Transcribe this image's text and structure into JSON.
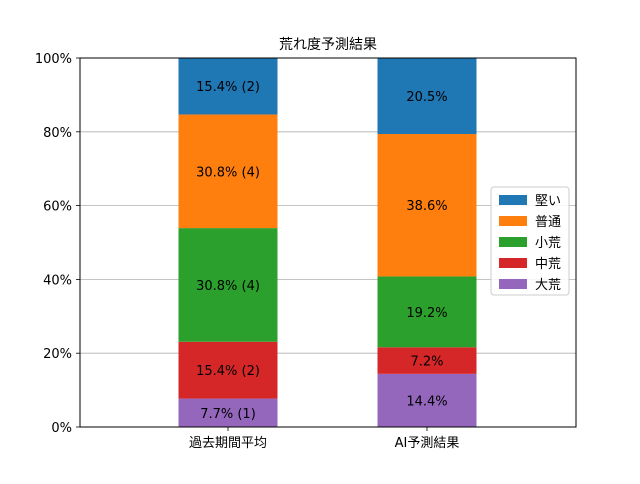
{
  "chart_data": {
    "type": "bar",
    "stacked": true,
    "title": "荒れ度予測結果",
    "xlabel": "",
    "ylabel": "",
    "ylim": [
      0,
      100
    ],
    "yticks": [
      {
        "value": 0,
        "label": "0%"
      },
      {
        "value": 20,
        "label": "20%"
      },
      {
        "value": 40,
        "label": "40%"
      },
      {
        "value": 60,
        "label": "60%"
      },
      {
        "value": 80,
        "label": "80%"
      },
      {
        "value": 100,
        "label": "100%"
      }
    ],
    "grid": "horizontal",
    "legend_position": "center-right",
    "categories": [
      "過去期間平均",
      "AI予測結果"
    ],
    "series": [
      {
        "name": "大荒",
        "color": "#9467bd",
        "values": [
          7.7,
          14.4
        ],
        "labels": [
          "7.7% (1)",
          "14.4%"
        ]
      },
      {
        "name": "中荒",
        "color": "#d62728",
        "values": [
          15.4,
          7.2
        ],
        "labels": [
          "15.4% (2)",
          "7.2%"
        ]
      },
      {
        "name": "小荒",
        "color": "#2ca02c",
        "values": [
          30.8,
          19.2
        ],
        "labels": [
          "30.8% (4)",
          "19.2%"
        ]
      },
      {
        "name": "普通",
        "color": "#ff7f0e",
        "values": [
          30.8,
          38.6
        ],
        "labels": [
          "30.8% (4)",
          "38.6%"
        ]
      },
      {
        "name": "堅い",
        "color": "#1f77b4",
        "values": [
          15.4,
          20.5
        ],
        "labels": [
          "15.4% (2)",
          "20.5%"
        ]
      }
    ],
    "legend_order": [
      "堅い",
      "普通",
      "小荒",
      "中荒",
      "大荒"
    ]
  }
}
